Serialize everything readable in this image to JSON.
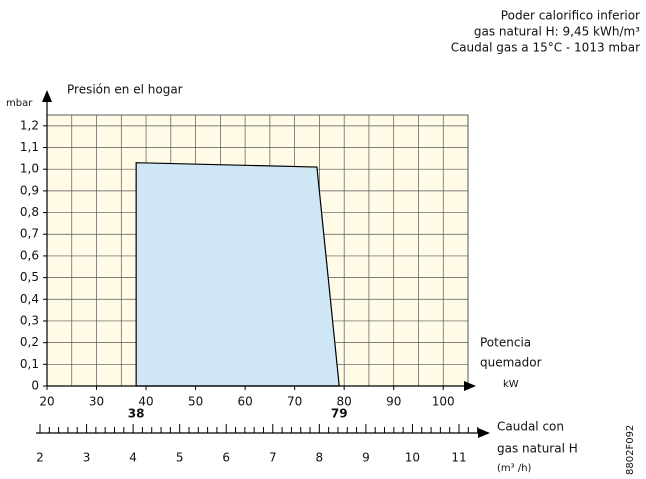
{
  "chart_data": {
    "type": "area",
    "header": [
      "Poder calorifico inferior",
      "gas natural H: 9,45 kWh/m³",
      "Caudal gas a 15°C - 1013 mbar"
    ],
    "y_unit": "mbar",
    "y_label": "Presión en el hogar",
    "x_label": [
      "Potencia",
      "quemador"
    ],
    "x_unit": "kW",
    "x2_label": [
      "Caudal con",
      "gas natural H"
    ],
    "x2_unit": "(m³ /h)",
    "code": "8802F092",
    "xlim": [
      20,
      105
    ],
    "xticks": [
      20,
      30,
      40,
      50,
      60,
      70,
      80,
      90,
      100
    ],
    "ylim": [
      0,
      1.25
    ],
    "yticks": [
      {
        "value": 0,
        "label": "0"
      },
      {
        "value": 0.1,
        "label": "0,1"
      },
      {
        "value": 0.2,
        "label": "0,2"
      },
      {
        "value": 0.3,
        "label": "0,3"
      },
      {
        "value": 0.4,
        "label": "0,4"
      },
      {
        "value": 0.5,
        "label": "0,5"
      },
      {
        "value": 0.6,
        "label": "0,6"
      },
      {
        "value": 0.7,
        "label": "0,7"
      },
      {
        "value": 0.8,
        "label": "0,8"
      },
      {
        "value": 0.9,
        "label": "0,9"
      },
      {
        "value": 1.0,
        "label": "1,0"
      },
      {
        "value": 1.1,
        "label": "1,1"
      },
      {
        "value": 1.2,
        "label": "1,2"
      }
    ],
    "x2lim": [
      2,
      11
    ],
    "x2ticks": [
      2,
      3,
      4,
      5,
      6,
      7,
      8,
      9,
      10,
      11
    ],
    "grid": true,
    "series": [
      {
        "color": "#cfe6f5",
        "x": [
          38,
          38,
          74.5,
          79
        ],
        "values": [
          0,
          1.03,
          1.01,
          0
        ]
      }
    ],
    "annotations": [
      {
        "x": 38,
        "label": "38"
      },
      {
        "x": 79,
        "label": "79"
      }
    ]
  }
}
